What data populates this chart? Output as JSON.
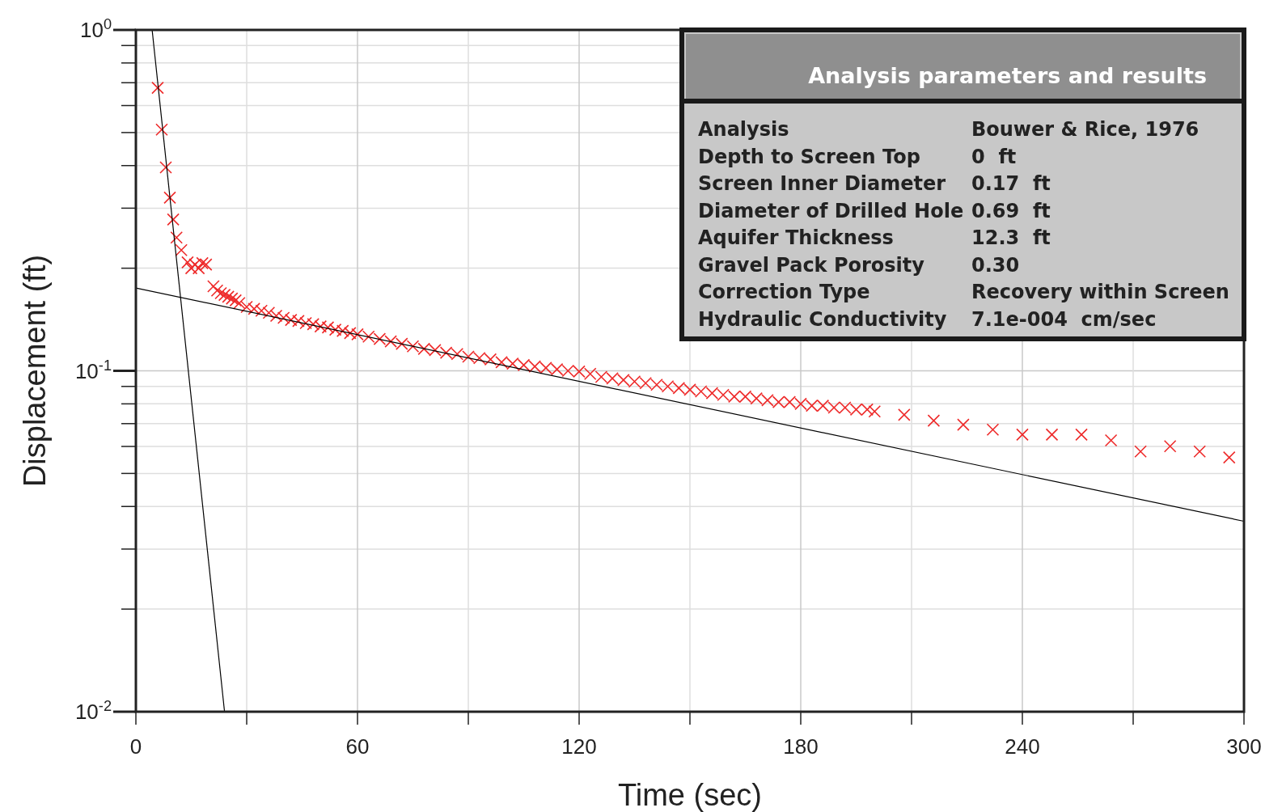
{
  "chart_data": {
    "type": "scatter",
    "xlabel": "Time (sec)",
    "ylabel": "Displacement (ft)",
    "log": "y",
    "grid": true,
    "xlim": [
      0,
      300
    ],
    "ylim": [
      0.01,
      1
    ],
    "xticks": [
      0,
      {
        "value": 30,
        "label": null
      },
      60,
      {
        "value": 90,
        "label": null
      },
      120,
      {
        "value": 150,
        "label": null
      },
      180,
      {
        "value": 210,
        "label": null
      },
      240,
      {
        "value": 270,
        "label": null
      },
      300
    ],
    "yticks": [
      {
        "value": 0.01,
        "label": "10$^{-2}$"
      },
      {
        "value": 0.02,
        "label": null
      },
      {
        "value": 0.03,
        "label": null
      },
      {
        "value": 0.04,
        "label": null
      },
      {
        "value": 0.05,
        "label": null
      },
      {
        "value": 0.06,
        "label": null
      },
      {
        "value": 0.07,
        "label": null
      },
      {
        "value": 0.08,
        "label": null
      },
      {
        "value": 0.09,
        "label": null
      },
      {
        "value": 0.1,
        "label": "10$^{-1}$"
      },
      {
        "value": 0.2,
        "label": null
      },
      {
        "value": 0.3,
        "label": null
      },
      {
        "value": 0.4,
        "label": null
      },
      {
        "value": 0.5,
        "label": null
      },
      {
        "value": 0.6,
        "label": null
      },
      {
        "value": 0.7,
        "label": null
      },
      {
        "value": 0.8,
        "label": null
      },
      {
        "value": 0.9,
        "label": null
      },
      {
        "value": 1,
        "label": "10$^{0}$"
      }
    ],
    "series": [
      {
        "marker": "cross",
        "color": "#ee2a2a",
        "x": [
          5.9,
          7.0,
          8.1,
          9.2,
          10.1,
          11,
          12.3,
          14,
          15,
          16,
          17,
          18,
          19,
          21,
          22,
          23,
          24,
          25,
          26,
          27,
          28,
          30,
          32,
          34,
          36,
          38,
          40,
          42,
          44,
          46,
          48,
          50,
          52,
          54,
          56,
          58,
          60,
          63,
          66,
          69,
          72,
          75,
          78,
          81,
          84,
          87,
          90,
          93,
          96,
          99,
          102,
          105,
          108,
          111,
          114,
          117,
          120,
          123,
          126,
          129,
          132,
          135,
          138,
          141,
          144,
          147,
          150,
          153,
          156,
          159,
          162,
          165,
          168,
          171,
          174,
          177,
          180,
          183,
          186,
          189,
          192,
          195,
          198,
          200,
          208,
          216,
          224,
          232,
          240,
          248,
          256,
          264,
          272,
          280,
          288,
          296
        ],
        "values": [
          0.676,
          0.51,
          0.395,
          0.322,
          0.278,
          0.246,
          0.226,
          0.208,
          0.2,
          0.205,
          0.2,
          0.207,
          0.205,
          0.177,
          0.172,
          0.169,
          0.167,
          0.165,
          0.163,
          0.161,
          0.158,
          0.154,
          0.152,
          0.15,
          0.148,
          0.145,
          0.143,
          0.141,
          0.14,
          0.138,
          0.137,
          0.135,
          0.134,
          0.132,
          0.131,
          0.129,
          0.128,
          0.126,
          0.124,
          0.122,
          0.12,
          0.118,
          0.116,
          0.115,
          0.113,
          0.112,
          0.11,
          0.109,
          0.108,
          0.106,
          0.105,
          0.104,
          0.103,
          0.102,
          0.101,
          0.1,
          0.0995,
          0.098,
          0.096,
          0.095,
          0.094,
          0.093,
          0.092,
          0.091,
          0.09,
          0.089,
          0.088,
          0.087,
          0.086,
          0.085,
          0.084,
          0.084,
          0.083,
          0.082,
          0.081,
          0.081,
          0.08,
          0.079,
          0.079,
          0.078,
          0.078,
          0.077,
          0.077,
          0.076,
          0.0743,
          0.0714,
          0.0695,
          0.0672,
          0.065,
          0.065,
          0.065,
          0.0625,
          0.058,
          0.0601,
          0.058,
          0.0557
        ]
      },
      {
        "type": "line",
        "color": "#000000",
        "x": [
          4.4,
          24.0
        ],
        "values": [
          1,
          0.01
        ]
      },
      {
        "type": "line",
        "color": "#000000",
        "x": [
          0,
          300
        ],
        "values": [
          0.175,
          0.0362
        ]
      }
    ],
    "annotations": [
      "Analysis parameters and results",
      "Analysis",
      "Bouwer & Rice, 1976",
      "Depth to Screen Top",
      "0  ft",
      "Screen Inner Diameter",
      "0.17  ft",
      "Diameter of Drilled Hole",
      "0.69  ft",
      "Aquifer Thickness",
      "12.3  ft",
      "Gravel Pack Porosity",
      "0.30",
      "Correction Type",
      "Recovery within Screen",
      "Hydraulic Conductivity",
      "7.1e-004  cm/sec"
    ]
  }
}
